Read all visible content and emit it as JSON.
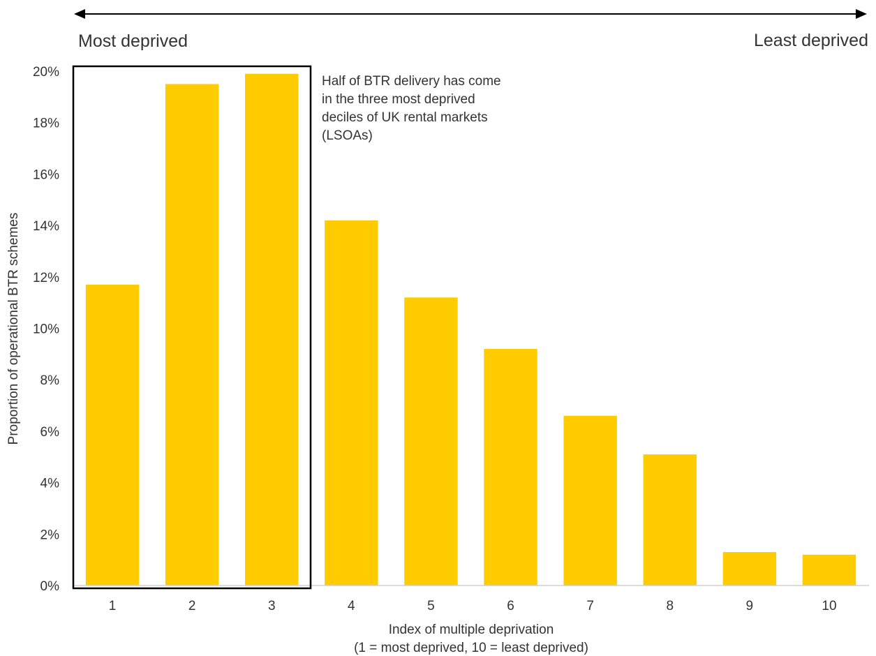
{
  "chart_data": {
    "type": "bar",
    "title": "",
    "categories": [
      "1",
      "2",
      "3",
      "4",
      "5",
      "6",
      "7",
      "8",
      "9",
      "10"
    ],
    "values": [
      11.7,
      19.5,
      19.9,
      14.2,
      11.2,
      9.2,
      6.6,
      5.1,
      1.3,
      1.2
    ],
    "ylim": [
      0,
      20
    ],
    "yticks": [
      "0%",
      "2%",
      "4%",
      "6%",
      "8%",
      "10%",
      "12%",
      "14%",
      "16%",
      "18%",
      "20%"
    ],
    "ylabel": "Proportion  of operational  BTR schemes",
    "xlabel_line1": "Index of multiple deprivation",
    "xlabel_line2": "(1 = most  deprived, 10 = least  deprived)",
    "grid": false,
    "bar_color": "#FFCC00",
    "highlight_box_color": "#000000",
    "highlight_categories": [
      "1",
      "2",
      "3"
    ],
    "left_label": "Most deprived",
    "right_label": "Least deprived",
    "annotation_lines": [
      "Half of BTR delivery has come",
      "in the three most deprived",
      "deciles of UK rental markets",
      "(LSOAs)"
    ]
  }
}
